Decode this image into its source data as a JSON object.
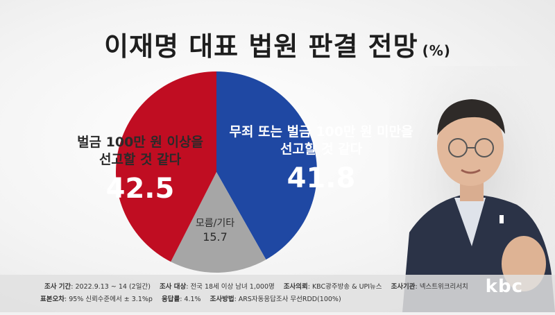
{
  "title": "이재명 대표 법원 판결 전망",
  "title_unit": "(%)",
  "chart_data": {
    "type": "pie",
    "start_angle_deg": 0,
    "direction": "clockwise",
    "slices": [
      {
        "label": "무죄 또는 벌금 100만 원 미만을 선고할 것 같다",
        "value": 41.8,
        "color": "#1f48a3"
      },
      {
        "label": "모름/기타",
        "value": 15.7,
        "color": "#a6a6a6"
      },
      {
        "label": "벌금 100만 원 이상을 선고할 것 같다",
        "value": 42.5,
        "color": "#c00d22"
      }
    ]
  },
  "labels": {
    "red_line1": "벌금 100만 원 이상을",
    "red_line2": "선고할 것 같다",
    "red_value": "42.5",
    "blue_line1": "무죄 또는 벌금 100만 원 미만을",
    "blue_line2": "선고할 것 같다",
    "blue_value": "41.8",
    "gray_line1": "모름/기타",
    "gray_value": "15.7"
  },
  "footer": {
    "period_label": "조사 기간",
    "period": ": 2022.9.13 ~ 14 (2일간)",
    "target_label": "조사 대상",
    "target": ": 전국 18세 이상 남녀 1,000명",
    "client_label": "조사의뢰",
    "client": ": KBC광주방송 & UPI뉴스",
    "agency_label": "조사기관",
    "agency": ": 넥스트위크리서치",
    "error_label": "표본오차",
    "error": ": 95% 신뢰수준에서 ± 3.1%p",
    "response_label": "응답률",
    "response": ": 4.1%",
    "method_label": "조사방법",
    "method": ": ARS자동응답조사 무선RDD(100%)"
  },
  "logo": "kbc"
}
